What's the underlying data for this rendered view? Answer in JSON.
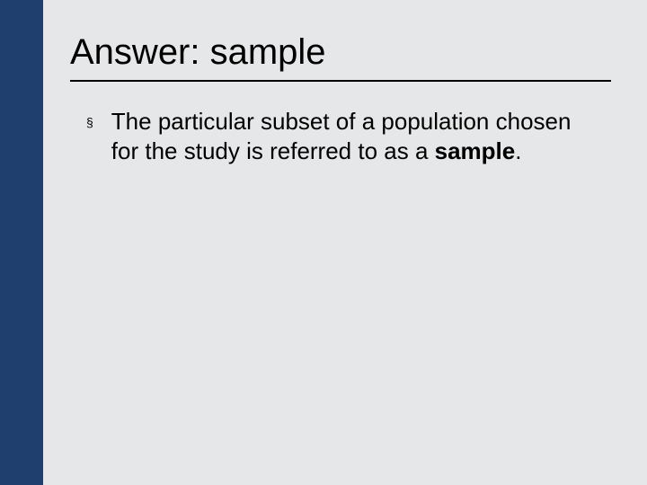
{
  "slide": {
    "background_color": "#e6e7e8",
    "sidebar_color": "#1f3f6e",
    "title_text": "Answer: sample",
    "title_fontsize": 40,
    "title_color": "#000000",
    "underline_color": "#000000",
    "bullet_glyph": "§",
    "body_text_prefix": "The particular subset of a population chosen for the study is referred to as a ",
    "body_text_bold": "sample",
    "body_text_suffix": ".",
    "body_fontsize": 26,
    "body_color": "#000000"
  }
}
